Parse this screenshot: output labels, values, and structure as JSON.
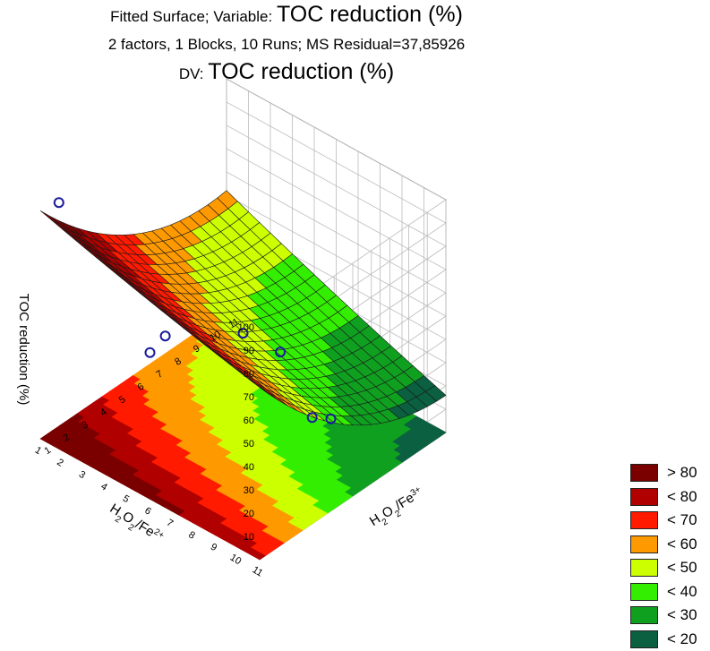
{
  "title": {
    "line1_prefix": "Fitted Surface; Variable: ",
    "line1_variable": "TOC reduction (%)",
    "line2": "2 factors, 1 Blocks, 10 Runs; MS Residual=37,85926",
    "line3_prefix": "DV: ",
    "line3_variable": "TOC reduction (%)"
  },
  "chart_data": {
    "type": "surface3d",
    "title": "Fitted Surface; Variable: TOC reduction (%)",
    "subtitle": "2 factors, 1 Blocks, 10 Runs; MS Residual=37,85926",
    "dv": "DV: TOC reduction (%)",
    "zlabel": "TOC reduction (%)",
    "zlim": [
      0,
      100
    ],
    "z_ticks": [
      "10",
      "20",
      "30",
      "40",
      "50",
      "60",
      "70",
      "80",
      "90",
      "100"
    ],
    "x_ticks": [
      "1",
      "2",
      "3",
      "4",
      "5",
      "6",
      "7",
      "8",
      "9",
      "10",
      "11"
    ],
    "y_ticks": [
      "11",
      "10",
      "9",
      "8",
      "7",
      "6",
      "5",
      "4",
      "3",
      "2",
      "1"
    ],
    "observed_points": [
      {
        "x": 2,
        "y": 1,
        "z": 96
      },
      {
        "x": 1,
        "y": 6,
        "z": 63
      },
      {
        "x": 3,
        "y": 5,
        "z": 54
      },
      {
        "x": 6,
        "y": 6,
        "z": 44
      },
      {
        "x": 5,
        "y": 10,
        "z": 34
      },
      {
        "x": 8,
        "y": 6,
        "z": 25
      },
      {
        "x": 6,
        "y": 10,
        "z": 28
      }
    ],
    "legend": [
      {
        "label": "> 80",
        "color": "#7a0000"
      },
      {
        "label": "< 80",
        "color": "#b00000"
      },
      {
        "label": "< 70",
        "color": "#ff1a00"
      },
      {
        "label": "< 60",
        "color": "#ff9900"
      },
      {
        "label": "< 50",
        "color": "#ccff00"
      },
      {
        "label": "< 40",
        "color": "#33ee00"
      },
      {
        "label": "< 30",
        "color": "#10a020"
      },
      {
        "label": "< 20",
        "color": "#0a6040"
      }
    ]
  },
  "axes": {
    "z_title": "TOC reduction (%)",
    "x_title_parts": [
      "H",
      "2",
      "O",
      "2",
      "/Fe",
      "3+"
    ],
    "y_title_parts": [
      "H",
      "2",
      "O",
      "2",
      "/Fe",
      "2+"
    ]
  }
}
